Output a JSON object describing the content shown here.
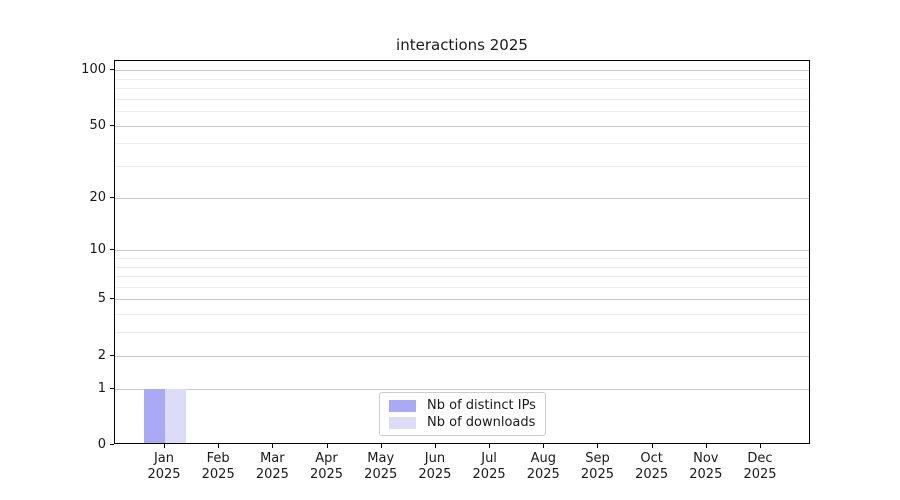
{
  "figure": {
    "background": "#ffffff"
  },
  "chart_data": {
    "type": "bar",
    "title": "interactions 2025",
    "categories": [
      "Jan 2025",
      "Feb 2025",
      "Mar 2025",
      "Apr 2025",
      "May 2025",
      "Jun 2025",
      "Jul 2025",
      "Aug 2025",
      "Sep 2025",
      "Oct 2025",
      "Nov 2025",
      "Dec 2025"
    ],
    "x_tick_month": [
      "Jan",
      "Feb",
      "Mar",
      "Apr",
      "May",
      "Jun",
      "Jul",
      "Aug",
      "Sep",
      "Oct",
      "Nov",
      "Dec"
    ],
    "x_tick_year": "2025",
    "series": [
      {
        "name": "Nb of distinct IPs",
        "color": "#a9a9f6",
        "values": [
          1,
          0,
          0,
          0,
          0,
          0,
          0,
          0,
          0,
          0,
          0,
          0
        ]
      },
      {
        "name": "Nb of downloads",
        "color": "#dcdcf8",
        "values": [
          1,
          0,
          0,
          0,
          0,
          0,
          0,
          0,
          0,
          0,
          0,
          0
        ]
      }
    ],
    "yscale": "log1p",
    "ylim": [
      0,
      112
    ],
    "y_major_ticks": [
      0,
      1,
      2,
      5,
      10,
      20,
      50,
      100
    ],
    "y_minor_gridlines": [
      3,
      4,
      6,
      7,
      8,
      9,
      30,
      40,
      60,
      70,
      80,
      90
    ],
    "grid": true,
    "legend": {
      "position": "lower center",
      "entries": [
        "Nb of distinct IPs",
        "Nb of downloads"
      ]
    },
    "colors": {
      "major_grid": "#c9c9c9",
      "minor_grid": "#ececec",
      "spine": "#000000",
      "text": "#1a1a1a"
    }
  }
}
